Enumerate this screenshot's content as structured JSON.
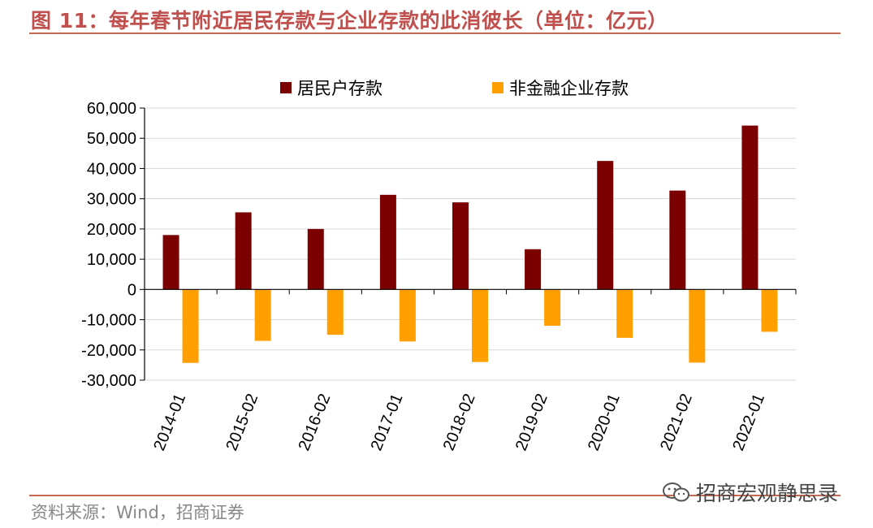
{
  "header": {
    "title": "图 11：每年春节附近居民存款与企业存款的此消彼长（单位：亿元）"
  },
  "footer": {
    "source": "资料来源：Wind，招商证券",
    "watermark": "招商宏观静思录",
    "watermark_icon": "wechat-icon"
  },
  "colors": {
    "household": "#7b0000",
    "corporate": "#ffa000",
    "title": "#c0504d",
    "rule": "#c56a52"
  },
  "chart_data": {
    "type": "bar",
    "title": "",
    "xlabel": "",
    "ylabel": "",
    "categories": [
      "2014-01",
      "2015-02",
      "2016-02",
      "2017-01",
      "2018-02",
      "2019-02",
      "2020-01",
      "2021-02",
      "2022-01"
    ],
    "series": [
      {
        "name": "居民户存款",
        "values": [
          18000,
          25500,
          20000,
          31300,
          28800,
          13300,
          42500,
          32700,
          54200
        ]
      },
      {
        "name": "非金融企业存款",
        "values": [
          -24300,
          -17000,
          -15000,
          -17200,
          -24000,
          -12000,
          -16000,
          -24200,
          -14000
        ]
      }
    ],
    "ylim": [
      -30000,
      60000
    ],
    "yticks": [
      60000,
      50000,
      40000,
      30000,
      20000,
      10000,
      0,
      -10000,
      -20000,
      -30000
    ],
    "ytick_labels": [
      "60,000",
      "50,000",
      "40,000",
      "30,000",
      "20,000",
      "10,000",
      "0",
      "-10,000",
      "-20,000",
      "-30,000"
    ],
    "grid": true,
    "legend_position": "top"
  }
}
